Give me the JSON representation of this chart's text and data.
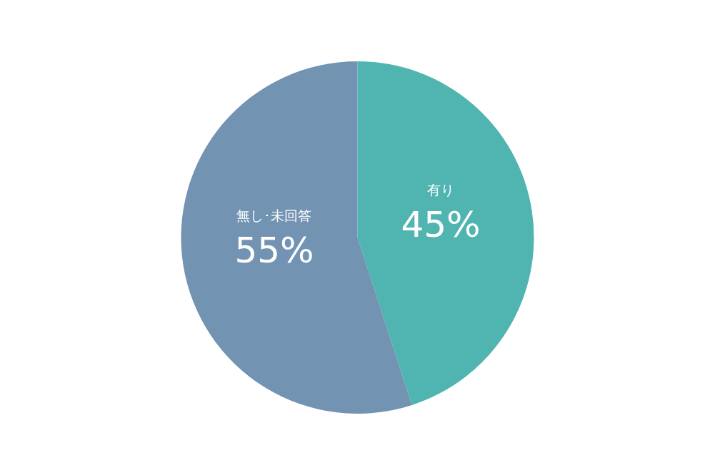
{
  "chart_data": {
    "type": "pie",
    "categories": [
      "有り",
      "無し･未回答"
    ],
    "values": [
      45,
      55
    ],
    "colors": [
      "#50b4b1",
      "#7393b2"
    ],
    "value_labels": [
      "45%",
      "55%"
    ]
  }
}
